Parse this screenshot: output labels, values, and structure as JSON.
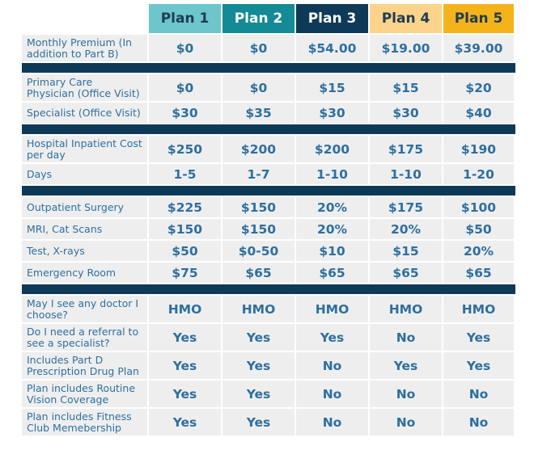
{
  "plans": [
    {
      "label": "Plan 1",
      "color": "#6cc6cc",
      "text": "#1f3c54"
    },
    {
      "label": "Plan 2",
      "color": "#138a95",
      "text": "#ffffff"
    },
    {
      "label": "Plan 3",
      "color": "#0e3a57",
      "text": "#ffffff"
    },
    {
      "label": "Plan 4",
      "color": "#fbd38a",
      "text": "#1f3c54"
    },
    {
      "label": "Plan 5",
      "color": "#f5b31b",
      "text": "#1f3c54"
    }
  ],
  "rows": [
    {
      "label": "Monthly Premium (In addition to Part B)",
      "values": [
        "$0",
        "$0",
        "$54.00",
        "$19.00",
        "$39.00"
      ]
    },
    {
      "label": "Primary Care Physician (Office Visit)",
      "values": [
        "$0",
        "$0",
        "$15",
        "$15",
        "$20"
      ]
    },
    {
      "label": "Specialist (Office Visit)",
      "values": [
        "$30",
        "$35",
        "$30",
        "$30",
        "$40"
      ]
    },
    {
      "label": "Hospital Inpatient Cost per day",
      "values": [
        "$250",
        "$200",
        "$200",
        "$175",
        "$190"
      ]
    },
    {
      "label": "Days",
      "values": [
        "1-5",
        "1-7",
        "1-10",
        "1-10",
        "1-20"
      ]
    },
    {
      "label": "Outpatient Surgery",
      "values": [
        "$225",
        "$150",
        "20%",
        "$175",
        "$100"
      ]
    },
    {
      "label": "MRI, Cat Scans",
      "values": [
        "$150",
        "$150",
        "20%",
        "20%",
        "$50"
      ]
    },
    {
      "label": "Test, X-rays",
      "values": [
        "$50",
        "$0-50",
        "$10",
        "$15",
        "20%"
      ]
    },
    {
      "label": "Emergency Room",
      "values": [
        "$75",
        "$65",
        "$65",
        "$65",
        "$65"
      ]
    },
    {
      "label": "May I see any doctor I choose?",
      "values": [
        "HMO",
        "HMO",
        "HMO",
        "HMO",
        "HMO"
      ]
    },
    {
      "label": "Do I need a referral to see a specialist?",
      "values": [
        "Yes",
        "Yes",
        "Yes",
        "No",
        "Yes"
      ]
    },
    {
      "label": "Includes Part D Prescription Drug Plan",
      "values": [
        "Yes",
        "Yes",
        "No",
        "Yes",
        "Yes"
      ]
    },
    {
      "label": "Plan includes Routine Vision Coverage",
      "values": [
        "Yes",
        "Yes",
        "No",
        "No",
        "No"
      ]
    },
    {
      "label": "Plan includes Fitness Club Memebership",
      "values": [
        "Yes",
        "Yes",
        "No",
        "No",
        "No"
      ]
    }
  ]
}
